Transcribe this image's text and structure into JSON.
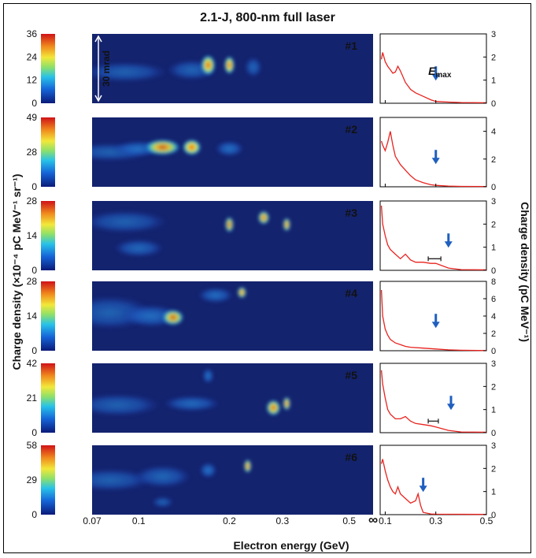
{
  "title": "2.1-J, 800-nm full laser",
  "xlabel": "Electron energy (GeV)",
  "ylabel_left": "Charge density (×10⁻⁴ pC MeV⁻¹ sr⁻¹)",
  "ylabel_right": "Charge density (pC MeV⁻¹)",
  "scale_bar_label": "30 mrad",
  "emax_label": "E",
  "emax_sub": "max",
  "colors": {
    "spectrum": "#e8231f",
    "arrow": "#1f5fbf",
    "errorbar": "#222222"
  },
  "chart_data": [
    {
      "type": "heatmap",
      "panel": "#1",
      "colorbar_ticks": [
        "36",
        "24",
        "12",
        "0"
      ],
      "spots": [
        {
          "energy": 0.09,
          "y": 0.55,
          "amp": 0.12,
          "de": 0.6,
          "dy": 0.09
        },
        {
          "energy": 0.15,
          "y": 0.52,
          "amp": 0.18,
          "de": 0.35,
          "dy": 0.09
        },
        {
          "energy": 0.17,
          "y": 0.45,
          "amp": 0.85,
          "de": 0.1,
          "dy": 0.09
        },
        {
          "energy": 0.2,
          "y": 0.45,
          "amp": 0.95,
          "de": 0.07,
          "dy": 0.08
        },
        {
          "energy": 0.24,
          "y": 0.48,
          "amp": 0.22,
          "de": 0.12,
          "dy": 0.09
        }
      ],
      "spectrum": {
        "x_ticks": [
          "0.1",
          "0.3",
          "0.5"
        ],
        "y_ticks": [
          "0",
          "1",
          "2",
          "3"
        ],
        "ylim": [
          0,
          3
        ],
        "x": [
          0.085,
          0.09,
          0.1,
          0.11,
          0.12,
          0.13,
          0.14,
          0.15,
          0.16,
          0.18,
          0.2,
          0.22,
          0.25,
          0.28,
          0.3,
          0.35,
          0.4,
          0.5
        ],
        "y": [
          1.9,
          2.2,
          1.8,
          1.6,
          1.45,
          1.3,
          1.35,
          1.6,
          1.4,
          0.9,
          0.6,
          0.45,
          0.3,
          0.15,
          0.08,
          0.05,
          0.03,
          0.02
        ],
        "emax": 0.3
      }
    },
    {
      "type": "heatmap",
      "panel": "#2",
      "colorbar_ticks": [
        "49",
        "28",
        "0"
      ],
      "spots": [
        {
          "energy": 0.08,
          "y": 0.5,
          "amp": 0.12,
          "de": 0.6,
          "dy": 0.08
        },
        {
          "energy": 0.1,
          "y": 0.45,
          "amp": 0.35,
          "de": 0.35,
          "dy": 0.07
        },
        {
          "energy": 0.12,
          "y": 0.43,
          "amp": 0.7,
          "de": 0.25,
          "dy": 0.07
        },
        {
          "energy": 0.15,
          "y": 0.43,
          "amp": 0.95,
          "de": 0.13,
          "dy": 0.07
        },
        {
          "energy": 0.2,
          "y": 0.45,
          "amp": 0.4,
          "de": 0.2,
          "dy": 0.07
        }
      ],
      "spectrum": {
        "x_ticks": [
          "0.1",
          "0.3",
          "0.5"
        ],
        "y_ticks": [
          "0",
          "2",
          "4"
        ],
        "ylim": [
          0,
          5
        ],
        "x": [
          0.085,
          0.09,
          0.1,
          0.11,
          0.12,
          0.13,
          0.14,
          0.16,
          0.18,
          0.2,
          0.22,
          0.25,
          0.28,
          0.3,
          0.35,
          0.4,
          0.5
        ],
        "y": [
          3.3,
          3.0,
          2.6,
          3.2,
          4.0,
          3.0,
          2.2,
          1.6,
          1.2,
          0.8,
          0.5,
          0.3,
          0.15,
          0.1,
          0.05,
          0.03,
          0.02
        ],
        "emax": 0.3
      }
    },
    {
      "type": "heatmap",
      "panel": "#3",
      "colorbar_ticks": [
        "28",
        "14",
        "0"
      ],
      "spots": [
        {
          "energy": 0.09,
          "y": 0.3,
          "amp": 0.12,
          "de": 0.6,
          "dy": 0.1
        },
        {
          "energy": 0.1,
          "y": 0.68,
          "amp": 0.25,
          "de": 0.35,
          "dy": 0.08
        },
        {
          "energy": 0.2,
          "y": 0.34,
          "amp": 0.75,
          "de": 0.06,
          "dy": 0.07
        },
        {
          "energy": 0.26,
          "y": 0.24,
          "amp": 0.8,
          "de": 0.08,
          "dy": 0.06
        },
        {
          "energy": 0.31,
          "y": 0.34,
          "amp": 0.95,
          "de": 0.05,
          "dy": 0.06
        }
      ],
      "spectrum": {
        "x_ticks": [],
        "y_ticks": [
          "0",
          "1",
          "2",
          "3"
        ],
        "ylim": [
          0,
          3
        ],
        "x": [
          0.085,
          0.09,
          0.1,
          0.11,
          0.12,
          0.14,
          0.16,
          0.18,
          0.2,
          0.22,
          0.25,
          0.28,
          0.3,
          0.35,
          0.4,
          0.5
        ],
        "y": [
          2.8,
          2.0,
          1.5,
          1.1,
          0.9,
          0.7,
          0.5,
          0.7,
          0.45,
          0.35,
          0.35,
          0.3,
          0.3,
          0.1,
          0.03,
          0.02
        ],
        "emax": 0.35,
        "errorbar": [
          0.27,
          0.32,
          0.5
        ]
      }
    },
    {
      "type": "heatmap",
      "panel": "#4",
      "colorbar_ticks": [
        "28",
        "14",
        "0"
      ],
      "spots": [
        {
          "energy": 0.08,
          "y": 0.45,
          "amp": 0.12,
          "de": 0.6,
          "dy": 0.15
        },
        {
          "energy": 0.11,
          "y": 0.5,
          "amp": 0.35,
          "de": 0.4,
          "dy": 0.1
        },
        {
          "energy": 0.13,
          "y": 0.52,
          "amp": 0.7,
          "de": 0.15,
          "dy": 0.07
        },
        {
          "energy": 0.18,
          "y": 0.2,
          "amp": 0.35,
          "de": 0.25,
          "dy": 0.07
        },
        {
          "energy": 0.22,
          "y": 0.16,
          "amp": 0.9,
          "de": 0.06,
          "dy": 0.05
        }
      ],
      "spectrum": {
        "x_ticks": [],
        "y_ticks": [
          "0",
          "2",
          "4",
          "6",
          "8"
        ],
        "ylim": [
          0,
          8
        ],
        "x": [
          0.085,
          0.09,
          0.1,
          0.11,
          0.12,
          0.14,
          0.16,
          0.18,
          0.2,
          0.25,
          0.3,
          0.35,
          0.4,
          0.5
        ],
        "y": [
          7.0,
          4.0,
          2.5,
          1.8,
          1.3,
          0.9,
          0.7,
          0.5,
          0.4,
          0.3,
          0.2,
          0.1,
          0.05,
          0.02
        ],
        "emax": 0.3
      }
    },
    {
      "type": "heatmap",
      "panel": "#5",
      "colorbar_ticks": [
        "42",
        "21",
        "0"
      ],
      "spots": [
        {
          "energy": 0.085,
          "y": 0.6,
          "amp": 0.12,
          "de": 0.6,
          "dy": 0.1
        },
        {
          "energy": 0.15,
          "y": 0.58,
          "amp": 0.3,
          "de": 0.4,
          "dy": 0.07
        },
        {
          "energy": 0.17,
          "y": 0.18,
          "amp": 0.45,
          "de": 0.08,
          "dy": 0.07
        },
        {
          "energy": 0.28,
          "y": 0.64,
          "amp": 0.8,
          "de": 0.1,
          "dy": 0.07
        },
        {
          "energy": 0.31,
          "y": 0.58,
          "amp": 0.95,
          "de": 0.05,
          "dy": 0.06
        }
      ],
      "spectrum": {
        "x_ticks": [],
        "y_ticks": [
          "0",
          "1",
          "2",
          "3"
        ],
        "ylim": [
          0,
          3
        ],
        "x": [
          0.085,
          0.09,
          0.1,
          0.11,
          0.12,
          0.14,
          0.16,
          0.18,
          0.2,
          0.22,
          0.25,
          0.28,
          0.3,
          0.35,
          0.4,
          0.5
        ],
        "y": [
          2.7,
          2.1,
          1.5,
          1.0,
          0.8,
          0.6,
          0.6,
          0.7,
          0.5,
          0.4,
          0.35,
          0.3,
          0.25,
          0.1,
          0.03,
          0.02
        ],
        "emax": 0.36,
        "errorbar": [
          0.27,
          0.31,
          0.5
        ]
      }
    },
    {
      "type": "heatmap",
      "panel": "#6",
      "colorbar_ticks": [
        "58",
        "29",
        "0"
      ],
      "spots": [
        {
          "energy": 0.08,
          "y": 0.5,
          "amp": 0.12,
          "de": 0.6,
          "dy": 0.1
        },
        {
          "energy": 0.12,
          "y": 0.45,
          "amp": 0.2,
          "de": 0.4,
          "dy": 0.1
        },
        {
          "energy": 0.17,
          "y": 0.36,
          "amp": 0.45,
          "de": 0.12,
          "dy": 0.07
        },
        {
          "energy": 0.23,
          "y": 0.3,
          "amp": 0.95,
          "de": 0.05,
          "dy": 0.06
        },
        {
          "energy": 0.12,
          "y": 0.82,
          "amp": 0.12,
          "de": 0.15,
          "dy": 0.05
        }
      ],
      "spectrum": {
        "x_ticks": [
          "0.1",
          "0.3",
          "0.5"
        ],
        "y_ticks": [
          "0",
          "1",
          "2",
          "3"
        ],
        "ylim": [
          0,
          3
        ],
        "x": [
          0.085,
          0.09,
          0.1,
          0.11,
          0.12,
          0.13,
          0.14,
          0.15,
          0.16,
          0.18,
          0.2,
          0.22,
          0.23,
          0.24,
          0.25,
          0.28,
          0.3,
          0.5
        ],
        "y": [
          2.2,
          2.4,
          1.9,
          1.5,
          1.2,
          1.0,
          0.9,
          1.2,
          0.9,
          0.7,
          0.5,
          0.6,
          0.9,
          0.4,
          0.1,
          0.03,
          0.02,
          0.01
        ],
        "emax": 0.25
      }
    }
  ],
  "energy_axis_ticks": [
    "0.07",
    "0.1",
    "0.2",
    "0.3",
    "0.5",
    "∞"
  ]
}
